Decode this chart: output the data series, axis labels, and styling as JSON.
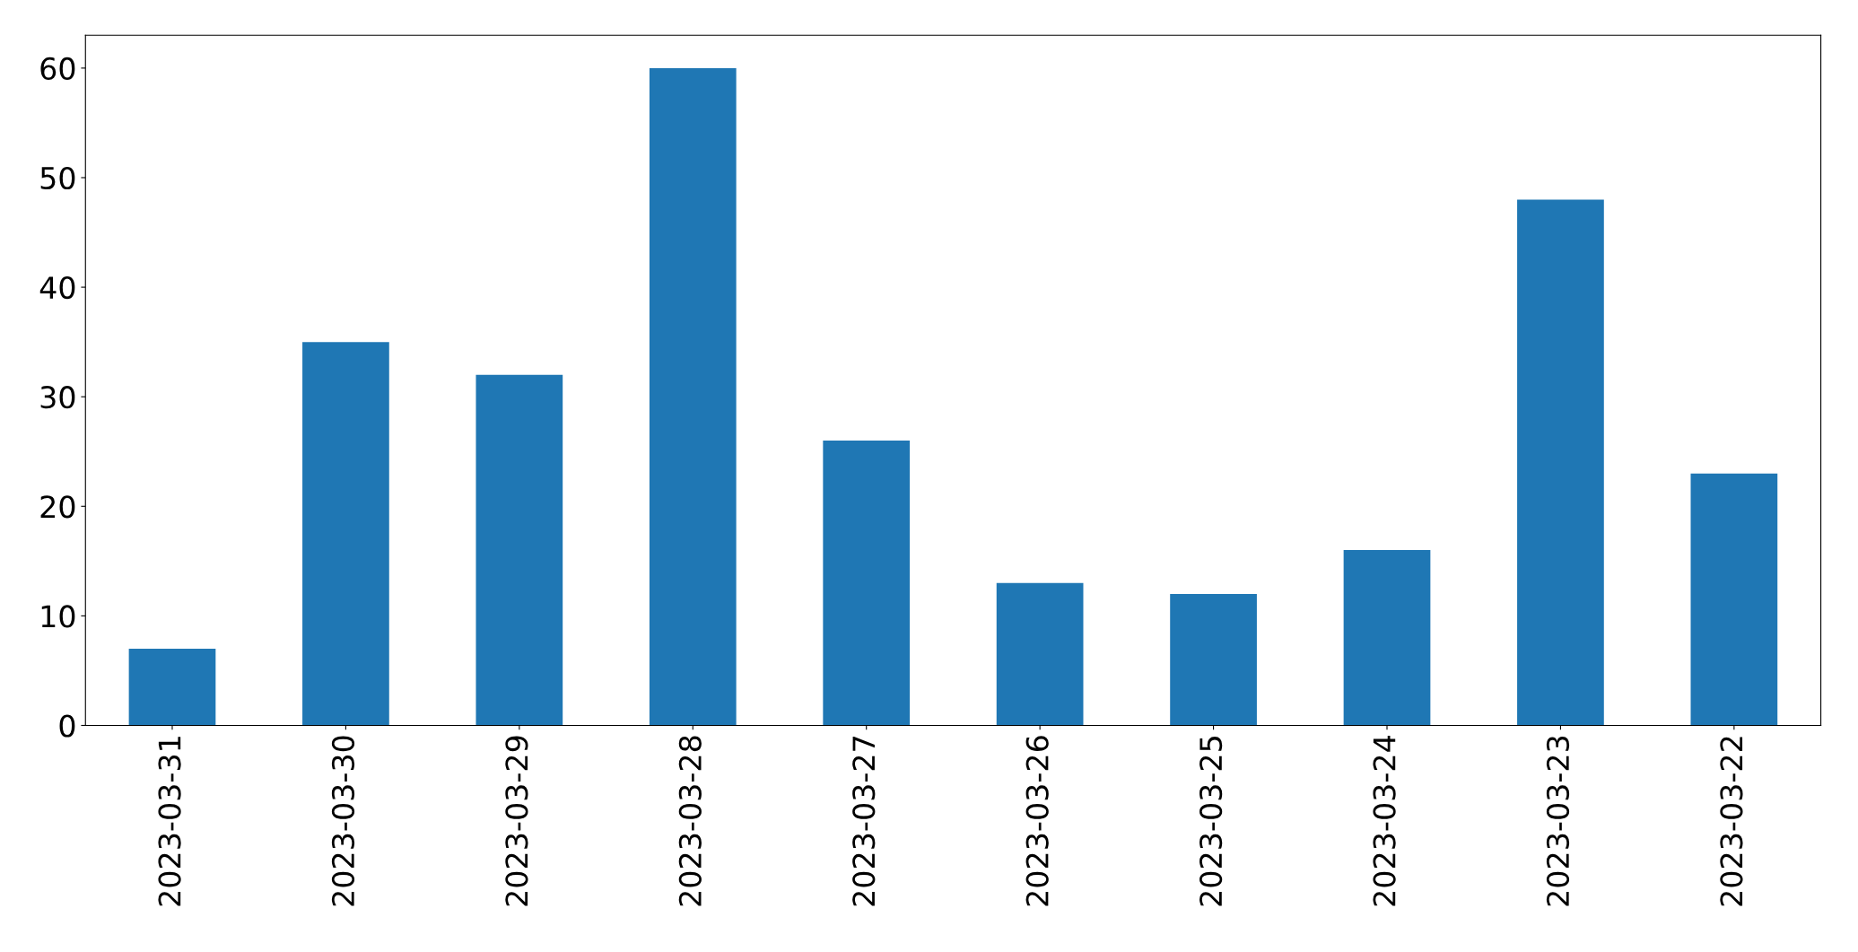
{
  "chart_data": {
    "type": "bar",
    "categories": [
      "2023-03-31",
      "2023-03-30",
      "2023-03-29",
      "2023-03-28",
      "2023-03-27",
      "2023-03-26",
      "2023-03-25",
      "2023-03-24",
      "2023-03-23",
      "2023-03-22"
    ],
    "values": [
      7,
      35,
      32,
      60,
      26,
      13,
      12,
      16,
      48,
      23
    ],
    "color": "#1f77b4",
    "ylim": [
      0,
      63
    ],
    "yticks": [
      0,
      10,
      20,
      30,
      40,
      50,
      60
    ],
    "grid": false,
    "legend": false
  }
}
